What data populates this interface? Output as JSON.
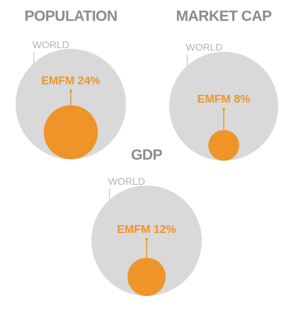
{
  "chart_data": [
    {
      "type": "nested-circle",
      "title": "POPULATION",
      "outer_label": "WORLD",
      "values": [
        24
      ],
      "value_labels": [
        "EMFM 24%"
      ],
      "color": "#ef9428",
      "outer_color": "#d9d9d9"
    },
    {
      "type": "nested-circle",
      "title": "MARKET CAP",
      "outer_label": "WORLD",
      "values": [
        8
      ],
      "value_labels": [
        "EMFM 8%"
      ],
      "color": "#ef9428",
      "outer_color": "#d9d9d9"
    },
    {
      "type": "nested-circle",
      "title": "GDP",
      "outer_label": "WORLD",
      "values": [
        12
      ],
      "value_labels": [
        "EMFM 12%"
      ],
      "color": "#ef9428",
      "outer_color": "#d9d9d9"
    }
  ]
}
